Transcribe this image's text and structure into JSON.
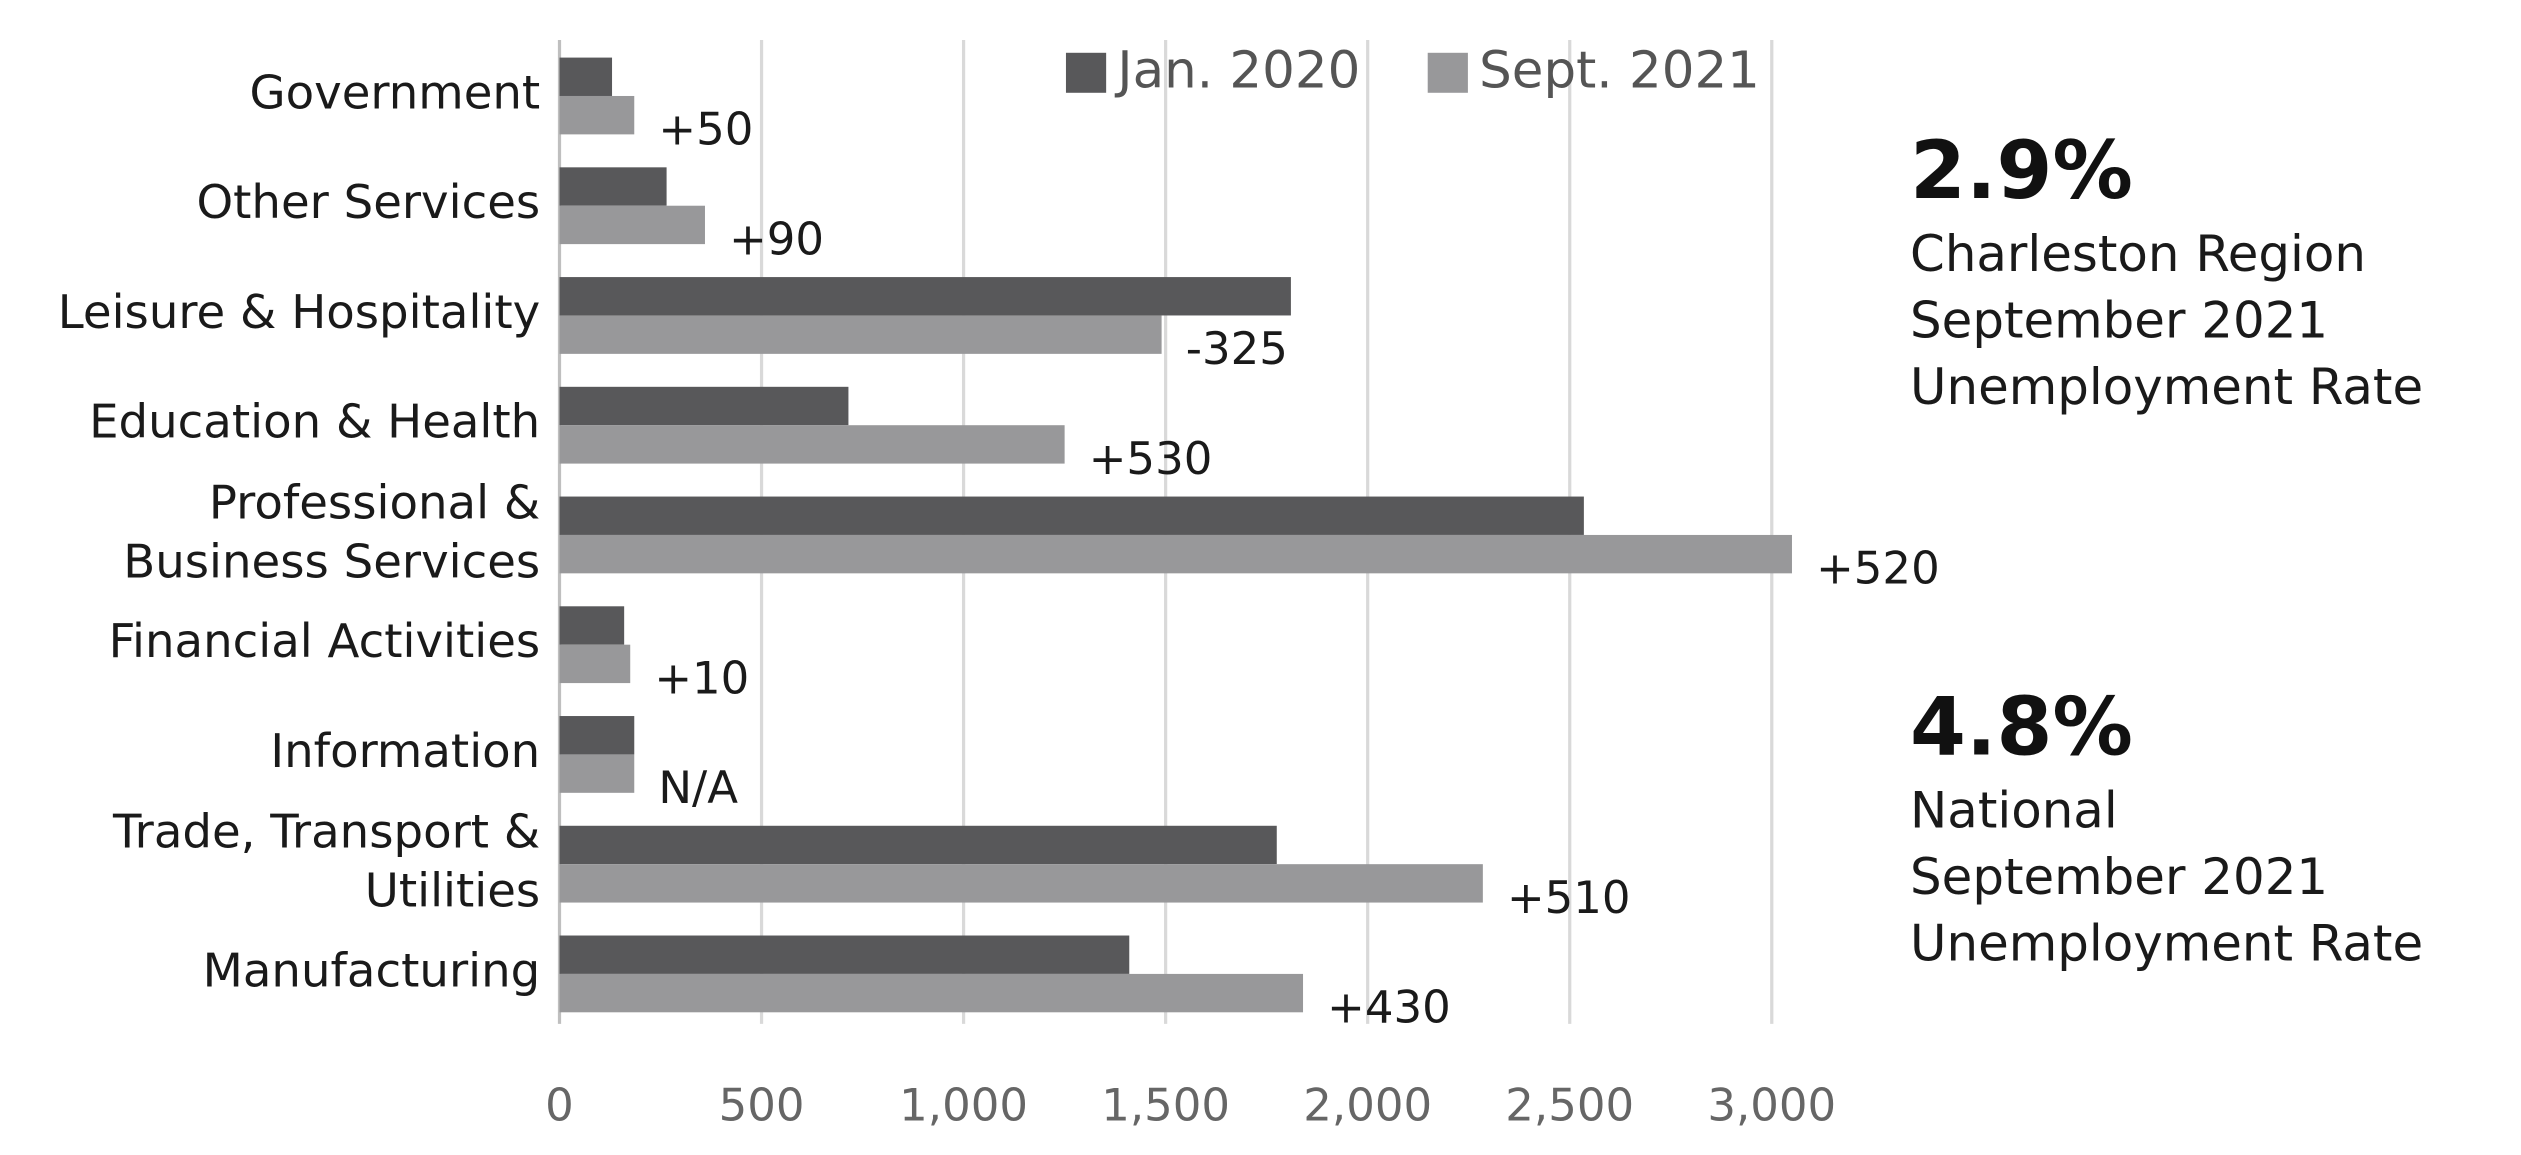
{
  "chart_data": {
    "type": "bar",
    "orientation": "horizontal",
    "categories": [
      "Government",
      "Other Services",
      "Leisure & Hospitality",
      "Education & Health",
      "Professional &\nBusiness Services",
      "Financial Activities",
      "Information",
      "Trade, Transport &\nUtilities",
      "Manufacturing"
    ],
    "series": [
      {
        "name": "Jan. 2020",
        "color": "#58585a",
        "values": [
          130,
          265,
          1810,
          715,
          2535,
          160,
          185,
          1775,
          1410
        ]
      },
      {
        "name": "Sept. 2021",
        "color": "#98989a",
        "values": [
          185,
          360,
          1490,
          1250,
          3050,
          175,
          185,
          2285,
          1840
        ]
      }
    ],
    "change_labels": [
      "+50",
      "+90",
      "-325",
      "+530",
      "+520",
      "+10",
      "N/A",
      "+510",
      "+430"
    ],
    "xlim": [
      0,
      3500
    ],
    "xticks": [
      0,
      500,
      {
        "value": 1000,
        "label": "1,000"
      },
      {
        "value": 1500,
        "label": "1,500"
      },
      {
        "value": 2000,
        "label": "2,000"
      },
      {
        "value": 2500,
        "label": "2,500"
      },
      {
        "value": 3000,
        "label": "3,000"
      }
    ],
    "grid": true,
    "legend": "top"
  },
  "stats": [
    {
      "value": "2.9%",
      "lines": [
        "Charleston Region",
        "September 2021",
        "Unemployment Rate"
      ]
    },
    {
      "value": "4.8%",
      "lines": [
        "National",
        "September 2021",
        "Unemployment Rate"
      ]
    }
  ]
}
